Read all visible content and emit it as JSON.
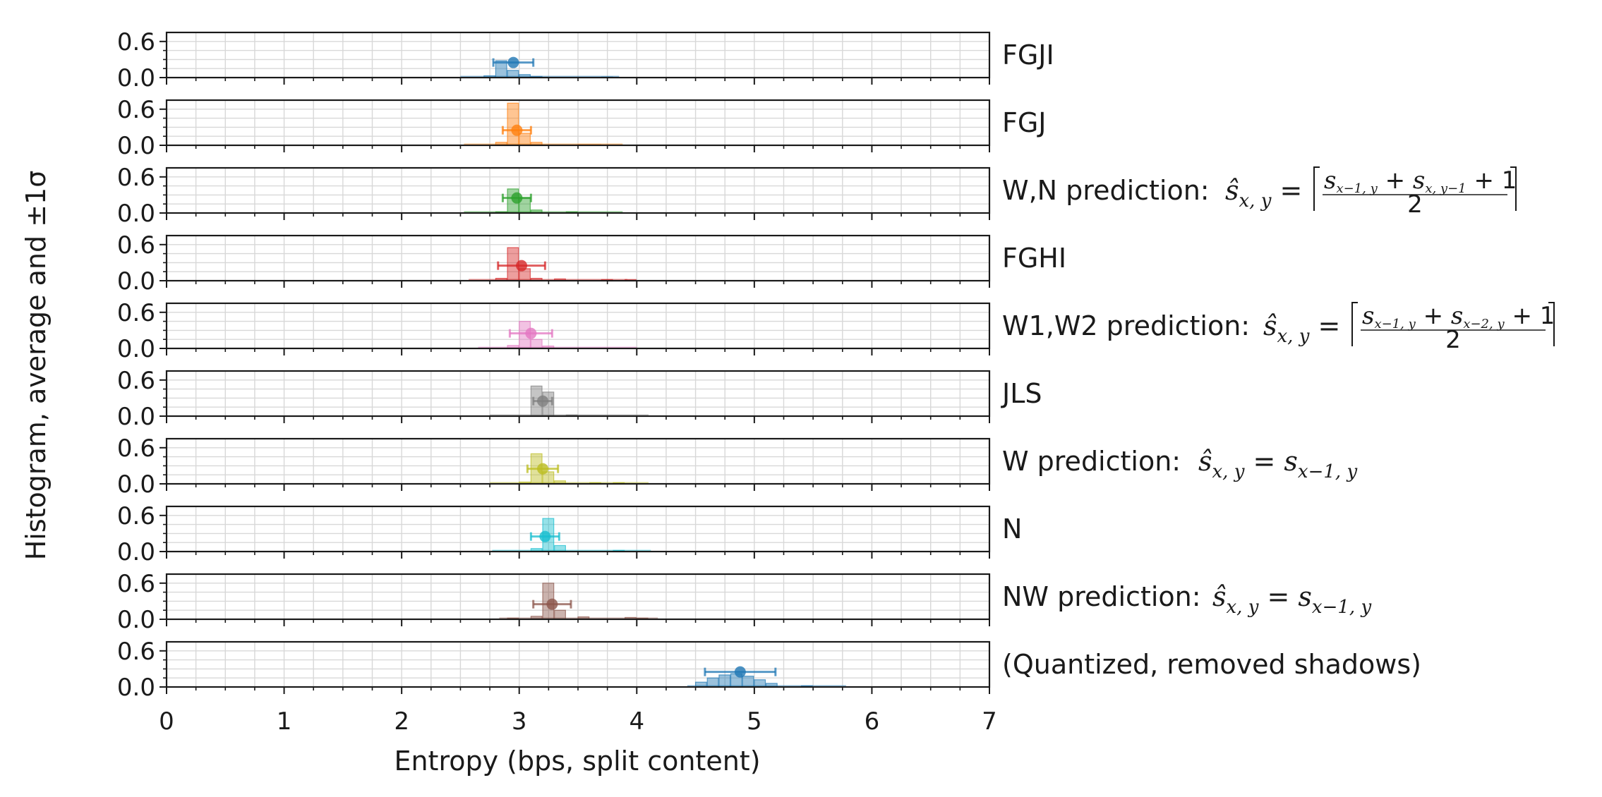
{
  "chart_data": {
    "type": "bar",
    "xlabel": "Entropy (bps, split content)",
    "ylabel": "Histogram, average and ±1σ",
    "xlim": [
      0,
      7
    ],
    "ylim": [
      0,
      0.75
    ],
    "x_ticks": [
      "0",
      "1",
      "2",
      "3",
      "4",
      "5",
      "6",
      "7"
    ],
    "y_ticks": [
      "0.0",
      "0.6"
    ],
    "grid": true,
    "bin_width": 0.1,
    "panels": [
      {
        "name": "FGJI",
        "color": "#1f77b4",
        "mean": 2.95,
        "sigma": 0.17,
        "bins": [
          [
            2.7,
            0.03
          ],
          [
            2.8,
            0.28
          ],
          [
            2.9,
            0.12
          ],
          [
            3.0,
            0.05
          ],
          [
            3.1,
            0.02
          ],
          [
            3.7,
            0.01
          ]
        ]
      },
      {
        "name": "FGJ",
        "color": "#ff7f0e",
        "mean": 2.98,
        "sigma": 0.12,
        "bins": [
          [
            2.8,
            0.05
          ],
          [
            2.9,
            0.7
          ],
          [
            3.0,
            0.2
          ],
          [
            3.1,
            0.05
          ],
          [
            3.5,
            0.01
          ],
          [
            3.6,
            0.01
          ]
        ]
      },
      {
        "name": "W,N prediction: ",
        "color": "#2ca02c",
        "mean": 2.98,
        "sigma": 0.12,
        "bins": [
          [
            2.8,
            0.02
          ],
          [
            2.9,
            0.4
          ],
          [
            3.0,
            0.25
          ],
          [
            3.1,
            0.05
          ],
          [
            3.4,
            0.02
          ]
        ]
      },
      {
        "name": "FGHI",
        "color": "#d62728",
        "mean": 3.02,
        "sigma": 0.2,
        "bins": [
          [
            2.8,
            0.04
          ],
          [
            2.9,
            0.55
          ],
          [
            3.0,
            0.2
          ],
          [
            3.1,
            0.04
          ],
          [
            3.3,
            0.03
          ],
          [
            3.7,
            0.02
          ],
          [
            3.9,
            0.02
          ]
        ]
      },
      {
        "name": "W1,W2 prediction: ",
        "color": "#e377c2",
        "mean": 3.1,
        "sigma": 0.18,
        "bins": [
          [
            2.9,
            0.05
          ],
          [
            3.0,
            0.45
          ],
          [
            3.1,
            0.15
          ],
          [
            3.2,
            0.04
          ]
        ]
      },
      {
        "name": "JLS",
        "color": "#7f7f7f",
        "mean": 3.2,
        "sigma": 0.08,
        "bins": [
          [
            3.1,
            0.5
          ],
          [
            3.2,
            0.4
          ],
          [
            3.4,
            0.02
          ]
        ]
      },
      {
        "name": "W prediction: ",
        "color": "#bcbd22",
        "mean": 3.2,
        "sigma": 0.13,
        "bins": [
          [
            3.0,
            0.03
          ],
          [
            3.1,
            0.5
          ],
          [
            3.2,
            0.2
          ],
          [
            3.3,
            0.05
          ],
          [
            3.6,
            0.02
          ],
          [
            3.8,
            0.02
          ]
        ]
      },
      {
        "name": "N",
        "color": "#17becf",
        "mean": 3.22,
        "sigma": 0.12,
        "bins": [
          [
            3.1,
            0.05
          ],
          [
            3.2,
            0.55
          ],
          [
            3.3,
            0.1
          ],
          [
            3.8,
            0.02
          ]
        ]
      },
      {
        "name": "NW prediction: ",
        "color": "#8c564b",
        "mean": 3.28,
        "sigma": 0.16,
        "bins": [
          [
            2.9,
            0.02
          ],
          [
            3.1,
            0.05
          ],
          [
            3.2,
            0.6
          ],
          [
            3.3,
            0.15
          ],
          [
            3.5,
            0.04
          ],
          [
            3.9,
            0.03
          ],
          [
            4.0,
            0.02
          ]
        ]
      },
      {
        "name": "(Quantized, removed shadows)",
        "color": "#1f77b4",
        "mean": 4.88,
        "sigma": 0.3,
        "bins": [
          [
            4.5,
            0.08
          ],
          [
            4.6,
            0.15
          ],
          [
            4.7,
            0.2
          ],
          [
            4.8,
            0.22
          ],
          [
            4.9,
            0.18
          ],
          [
            5.0,
            0.12
          ],
          [
            5.1,
            0.06
          ],
          [
            5.4,
            0.02
          ]
        ]
      }
    ]
  },
  "formulas": {
    "wn": {
      "lhs": "ŝ",
      "lhs_sub": "x, y",
      "num_a": "s",
      "num_a_sub": "x−1, y",
      "num_b": "s",
      "num_b_sub": "x, y−1",
      "num_tail": " + 1",
      "den": "2"
    },
    "w1w2": {
      "lhs": "ŝ",
      "lhs_sub": "x, y",
      "num_a": "s",
      "num_a_sub": "x−1, y",
      "num_b": "s",
      "num_b_sub": "x−2, y",
      "num_tail": " + 1",
      "den": "2"
    },
    "w": {
      "lhs": "ŝ",
      "lhs_sub": "x, y",
      "rhs": "s",
      "rhs_sub": "x−1, y"
    },
    "nw": {
      "lhs": "ŝ",
      "lhs_sub": "x, y",
      "rhs": "s",
      "rhs_sub": "x−1, y"
    }
  }
}
